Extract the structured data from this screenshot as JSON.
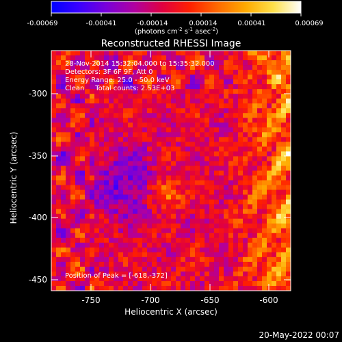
{
  "colorbar": {
    "tick_labels": [
      "-0.00069",
      "-0.00041",
      "-0.00014",
      "0.00014",
      "0.00041",
      "0.00069"
    ],
    "units": {
      "prefix": "(photons cm",
      "sup1": "-2",
      "mid1": " s",
      "sup2": "-1",
      "mid2": " asec",
      "sup3": "-2",
      "suffix": ")"
    },
    "colors": [
      "#0000ff",
      "#3a00ff",
      "#7a00d8",
      "#b000a0",
      "#e00040",
      "#ff2000",
      "#ff6a00",
      "#ffaa00",
      "#ffe04a",
      "#ffffff"
    ]
  },
  "plot": {
    "title": "Reconstructed RHESSI Image",
    "xlabel": "Heliocentric X (arcsec)",
    "ylabel": "Heliocentric Y (arcsec)",
    "x_ticks": [
      "-750",
      "-700",
      "-650",
      "-600"
    ],
    "y_ticks": [
      "-300",
      "-350",
      "-400",
      "-450"
    ],
    "info": [
      "28-Nov-2014 15:32:04.000 to 15:35:32.000",
      "Detectors: 3F 6F 9F, Att 0",
      "Energy Range: 25.0 - 50.0 keV",
      "Clean     Total counts: 2.53E+03"
    ],
    "peak_label": "Position of Peak = [-618,-372]",
    "footer_date": "20-May-2022 00:07"
  },
  "chart_data": {
    "type": "heatmap",
    "title": "Reconstructed RHESSI Image",
    "xlabel": "Heliocentric X (arcsec)",
    "ylabel": "Heliocentric Y (arcsec)",
    "xlim": [
      -777,
      -577
    ],
    "ylim": [
      -465,
      -268
    ],
    "color_range": [
      -0.00069,
      0.00069
    ],
    "peak_position": [
      -618,
      -372
    ]
  }
}
